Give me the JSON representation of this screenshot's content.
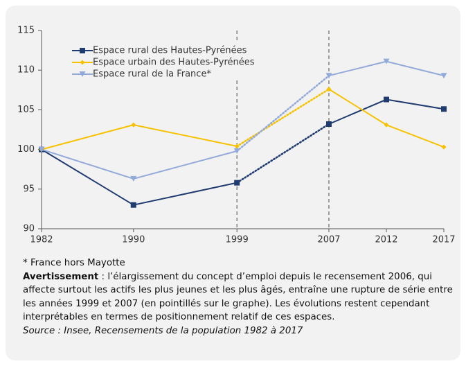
{
  "chart_data": {
    "type": "line",
    "x": [
      1982,
      1990,
      1999,
      2007,
      2012,
      2017
    ],
    "xticks": [
      1982,
      1990,
      1999,
      2007,
      2012,
      2017
    ],
    "xlim": [
      1982,
      2017
    ],
    "ylim": [
      90,
      115
    ],
    "yticks": [
      90,
      95,
      100,
      105,
      110,
      115
    ],
    "break_x": [
      1999,
      2007
    ],
    "series": [
      {
        "name": "Espace rural des Hautes-Pyrénées",
        "color": "#1f3b70",
        "marker": "square",
        "values": [
          100,
          93,
          95.8,
          103.2,
          106.3,
          105.1
        ]
      },
      {
        "name": "Espace urbain des Hautes-Pyrénées",
        "color": "#f6c200",
        "marker": "diamond",
        "values": [
          100,
          103.1,
          100.4,
          107.6,
          103.1,
          100.3
        ]
      },
      {
        "name": "Espace rural de la France*",
        "color": "#93aad9",
        "marker": "triangle-down",
        "values": [
          100,
          96.3,
          99.8,
          109.3,
          111.1,
          109.3
        ]
      }
    ]
  },
  "notes": {
    "footnote": "* France hors Mayotte",
    "warning_label": "Avertissement",
    "warning_text": " : l’élargissement du concept d’emploi depuis le recensement 2006, qui affecte surtout les actifs les plus jeunes et les plus âgés, entraîne une rupture de série entre les années 1999 et 2007 (en pointillés sur le graphe). Les évolutions restent cependant interprétables en termes de positionnement relatif de ces espaces.",
    "source": "Source : Insee, Recensements de la population 1982 à 2017"
  }
}
